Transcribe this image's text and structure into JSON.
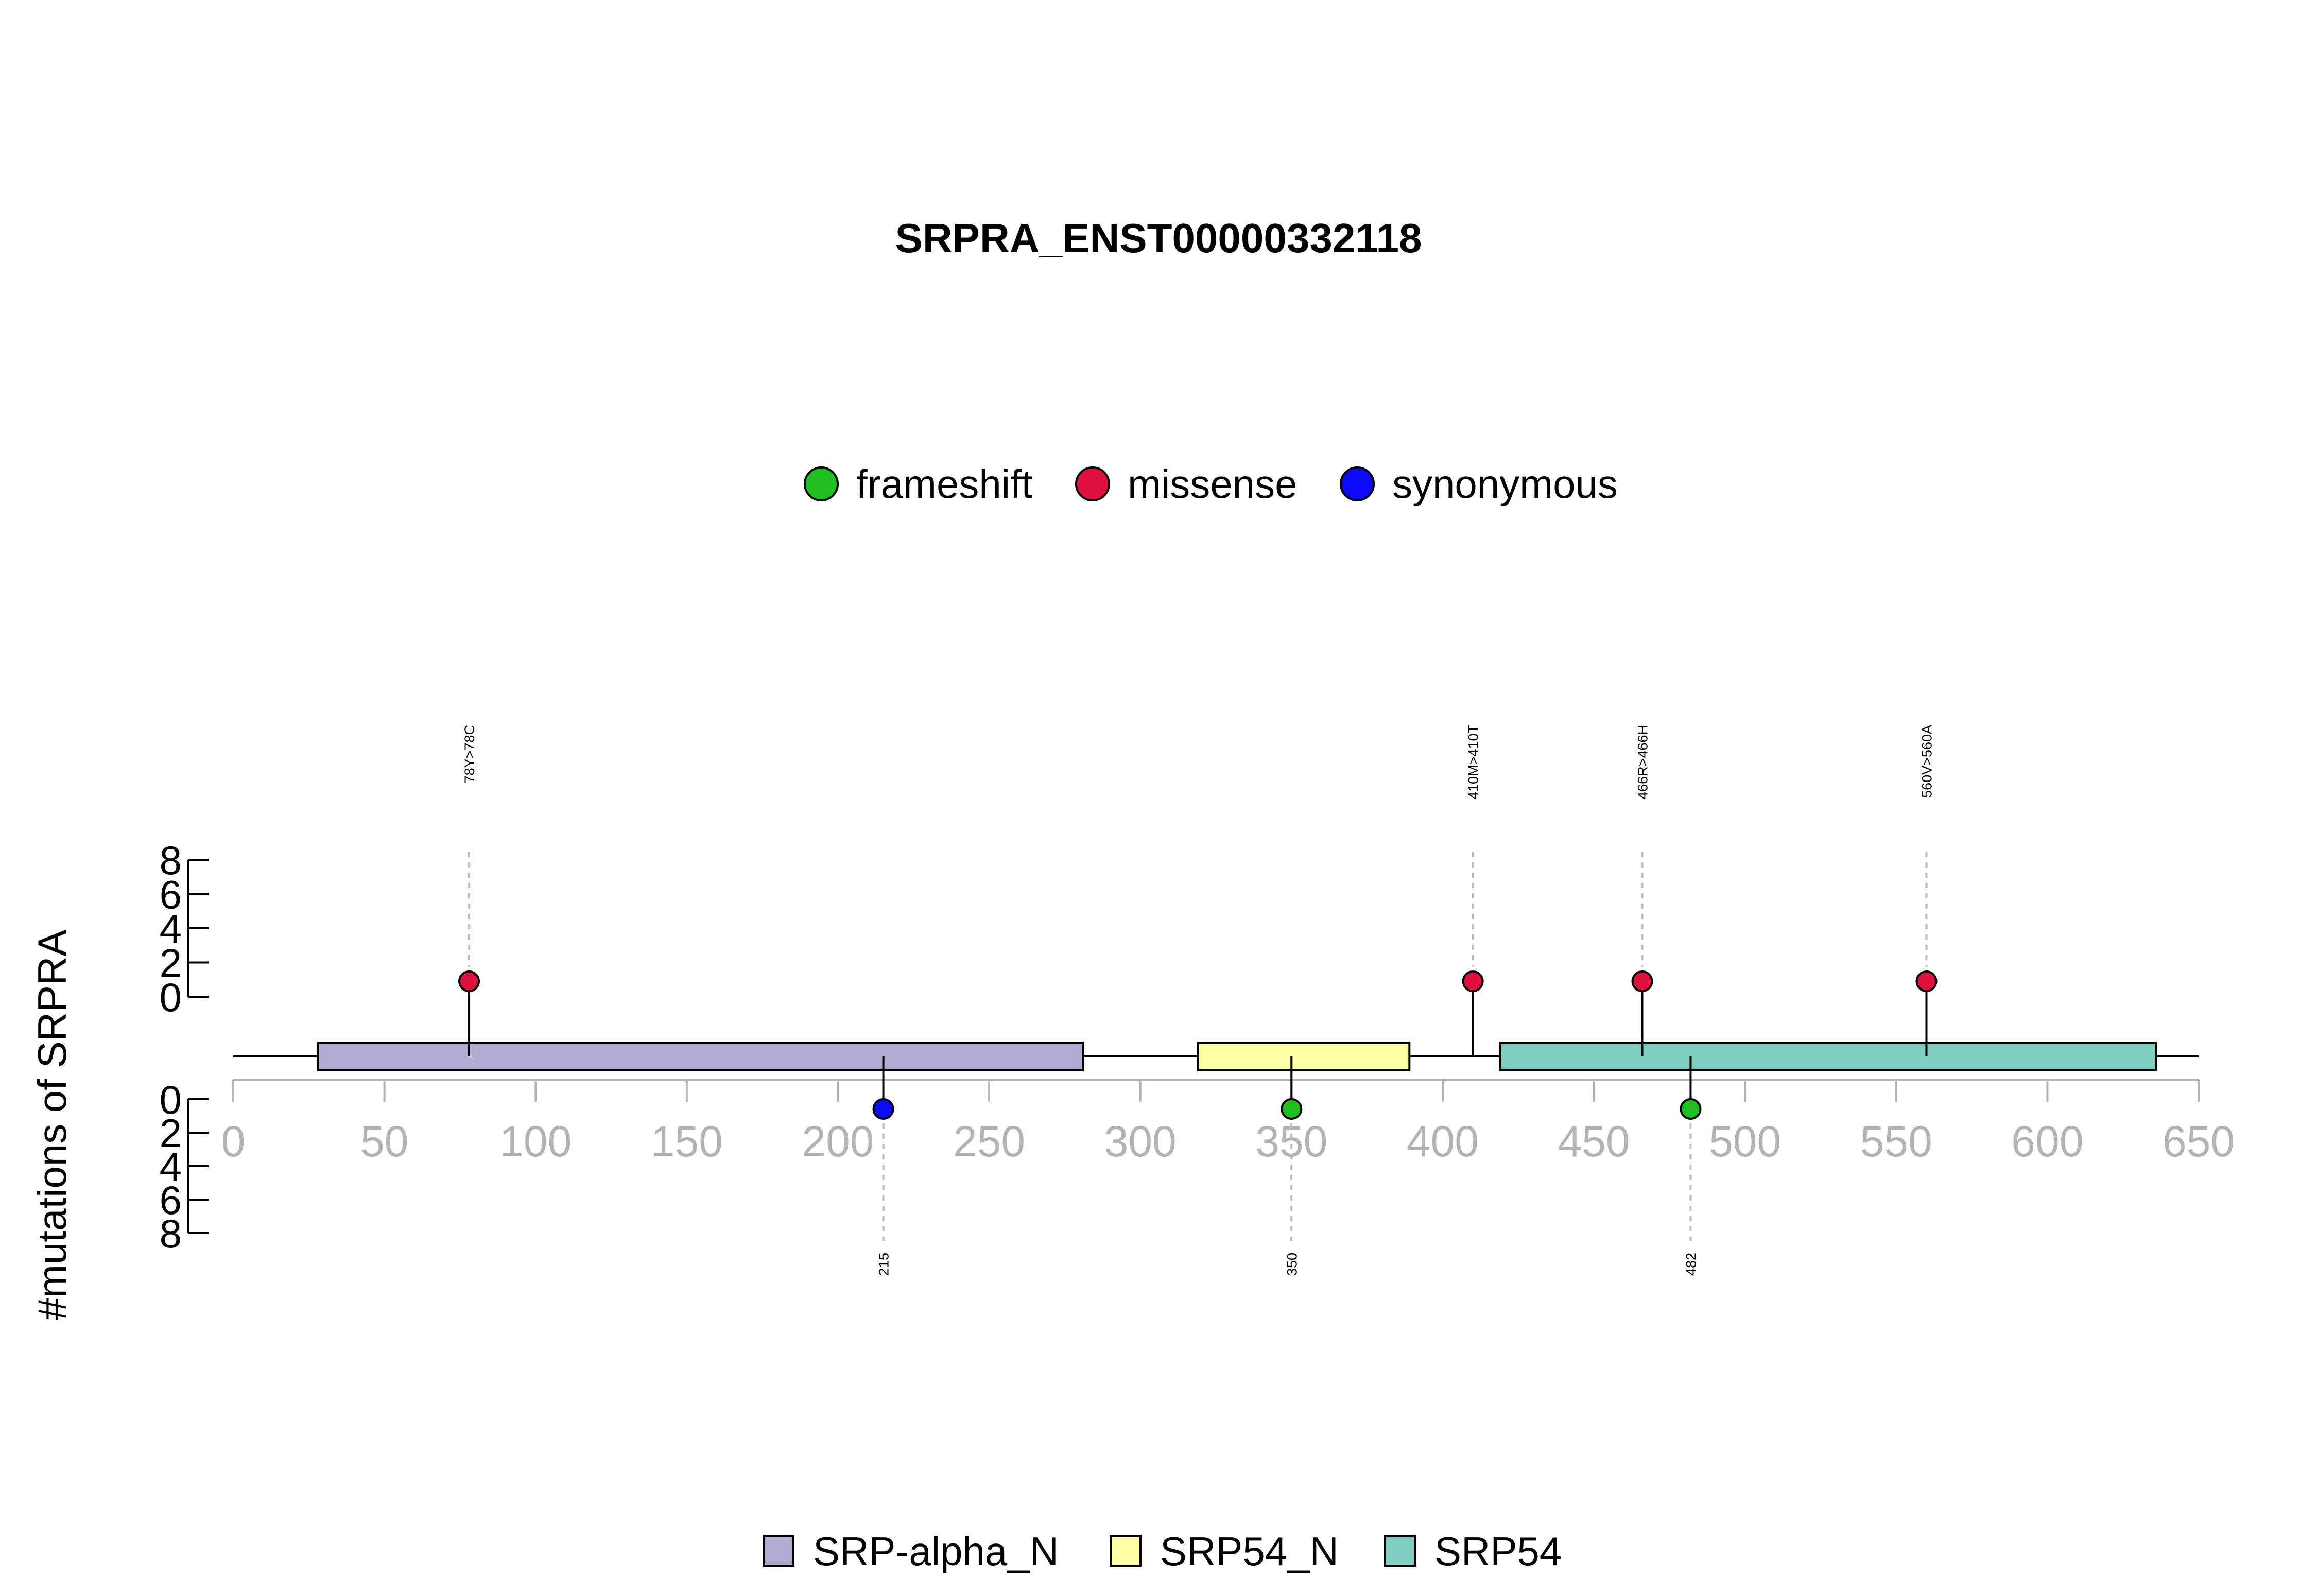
{
  "chart_data": {
    "type": "lollipop",
    "title": "SRPRA_ENST00000332118",
    "ylabel": "#mutations of SRPRA",
    "protein_length": 638,
    "xlim": [
      0,
      650
    ],
    "x_ticks": [
      0,
      50,
      100,
      150,
      200,
      250,
      300,
      350,
      400,
      450,
      500,
      550,
      600,
      650
    ],
    "y_ticks_top": [
      0,
      2,
      4,
      6,
      8
    ],
    "y_ticks_bottom": [
      0,
      2,
      4,
      6,
      8
    ],
    "ylim": [
      0,
      8
    ],
    "mutation_types": [
      {
        "name": "frameshift",
        "color": "#1fbf1f"
      },
      {
        "name": "missense",
        "color": "#e0103f"
      },
      {
        "name": "synonymous",
        "color": "#0a0aff"
      }
    ],
    "domains": [
      {
        "name": "SRP-alpha_N",
        "start": 28,
        "end": 281,
        "color": "#b2abd2"
      },
      {
        "name": "SRP54_N",
        "start": 319,
        "end": 389,
        "color": "#ffffa8"
      },
      {
        "name": "SRP54",
        "start": 419,
        "end": 636,
        "color": "#80cdc1"
      }
    ],
    "mutations": [
      {
        "position": 78,
        "count": 1,
        "type": "missense",
        "label": "78Y>78C",
        "side": "top"
      },
      {
        "position": 410,
        "count": 1,
        "type": "missense",
        "label": "410M>410T",
        "side": "top"
      },
      {
        "position": 466,
        "count": 1,
        "type": "missense",
        "label": "466R>466H",
        "side": "top"
      },
      {
        "position": 560,
        "count": 1,
        "type": "missense",
        "label": "560V>560A",
        "side": "top"
      },
      {
        "position": 215,
        "count": 1,
        "type": "synonymous",
        "label": "215",
        "side": "bottom"
      },
      {
        "position": 350,
        "count": 1,
        "type": "frameshift",
        "label": "350",
        "side": "bottom"
      },
      {
        "position": 482,
        "count": 1,
        "type": "frameshift",
        "label": "482",
        "side": "bottom"
      }
    ]
  }
}
